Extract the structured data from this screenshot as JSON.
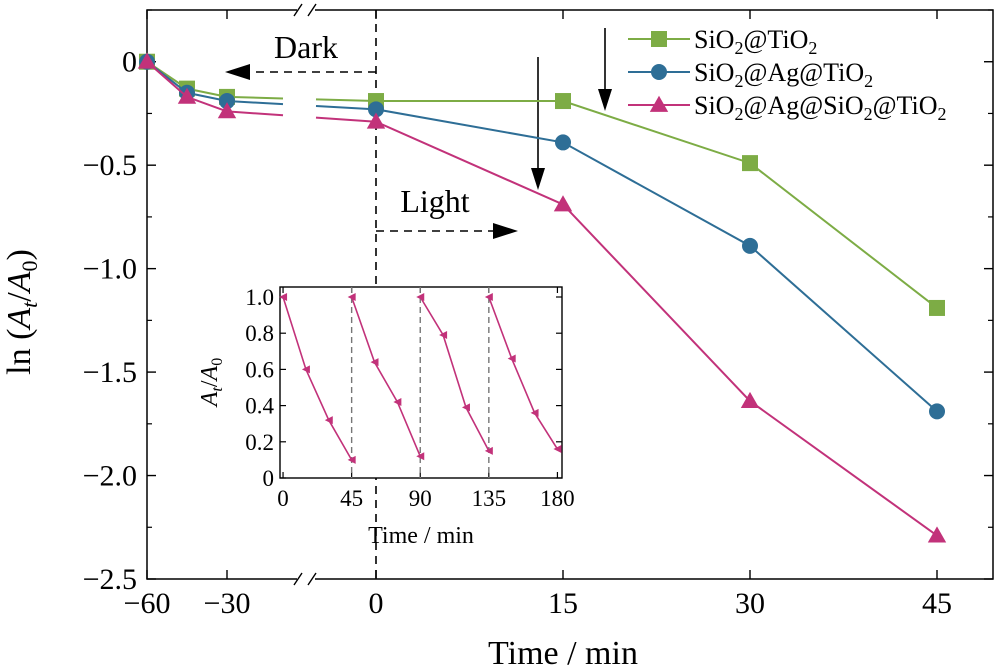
{
  "chart_data": [
    {
      "type": "line",
      "title": "",
      "xlabel": "Time / min",
      "ylabel_prefix": "ln (",
      "ylabel_num": "A",
      "ylabel_num_sub": "t",
      "ylabel_slash": "/",
      "ylabel_den": "A",
      "ylabel_den_sub": "0",
      "ylabel_suffix": ")",
      "x_ticks": [
        -60,
        -30,
        0,
        15,
        30,
        45
      ],
      "x_tick_labels": [
        "−60",
        "−30",
        "0",
        "15",
        "30",
        "45"
      ],
      "y_ticks": [
        0,
        -0.5,
        -1.0,
        -1.5,
        -2.0,
        -2.5
      ],
      "y_tick_labels": [
        "0",
        "−0.5",
        "−1.0",
        "−1.5",
        "−2.0",
        "−2.5"
      ],
      "ylim": [
        -2.5,
        0.25
      ],
      "axis_break_x": "between -30 and 0",
      "grid": false,
      "legend_position": "top-right",
      "annotations": {
        "dark": "Dark",
        "light": "Light"
      },
      "series": [
        {
          "name": "SiO₂@TiO₂",
          "legend_parts": [
            [
              "SiO",
              ""
            ],
            [
              "2",
              "sub"
            ],
            [
              "@TiO",
              ""
            ],
            [
              "2",
              "sub"
            ]
          ],
          "color": "#7dac45",
          "marker": "square",
          "x": [
            -60,
            -45,
            -30,
            0,
            15,
            30,
            45
          ],
          "y": [
            0,
            -0.13,
            -0.17,
            -0.19,
            -0.19,
            -0.49,
            -1.19
          ]
        },
        {
          "name": "SiO₂@Ag@TiO₂",
          "legend_parts": [
            [
              "SiO",
              ""
            ],
            [
              "2",
              "sub"
            ],
            [
              "@Ag@TiO",
              ""
            ],
            [
              "2",
              "sub"
            ]
          ],
          "color": "#2e6e96",
          "marker": "circle",
          "x": [
            -60,
            -45,
            -30,
            0,
            15,
            30,
            45
          ],
          "y": [
            0,
            -0.15,
            -0.19,
            -0.23,
            -0.39,
            -0.89,
            -1.69
          ]
        },
        {
          "name": "SiO₂@Ag@SiO₂@TiO₂",
          "legend_parts": [
            [
              "SiO",
              ""
            ],
            [
              "2",
              "sub"
            ],
            [
              "@Ag@SiO",
              ""
            ],
            [
              "2",
              "sub"
            ],
            [
              "@TiO",
              ""
            ],
            [
              "2",
              "sub"
            ]
          ],
          "color": "#c2327a",
          "marker": "triangle",
          "x": [
            -60,
            -45,
            -30,
            0,
            15,
            30,
            45
          ],
          "y": [
            0,
            -0.17,
            -0.24,
            -0.29,
            -0.69,
            -1.64,
            -2.29
          ]
        }
      ]
    },
    {
      "type": "line",
      "title": "",
      "xlabel": "Time / min",
      "ylabel_num": "A",
      "ylabel_num_sub": "t",
      "ylabel_slash": "/",
      "ylabel_den": "A",
      "ylabel_den_sub": "0",
      "xlim": [
        -2,
        183
      ],
      "ylim": [
        0,
        1.0
      ],
      "x_ticks": [
        0,
        45,
        90,
        135,
        180
      ],
      "x_tick_labels": [
        "0",
        "45",
        "90",
        "135",
        "180"
      ],
      "y_ticks": [
        0,
        0.2,
        0.4,
        0.6,
        0.8,
        1.0
      ],
      "y_tick_labels": [
        "0",
        "0.2",
        "0.4",
        "0.6",
        "0.8",
        "1.0"
      ],
      "cycle_dividers": [
        45,
        90,
        135
      ],
      "marker": "triangle",
      "color": "#c2327a",
      "cycles": [
        {
          "x": [
            0,
            15,
            30,
            45
          ],
          "y": [
            1.0,
            0.6,
            0.32,
            0.1
          ]
        },
        {
          "x": [
            45,
            60,
            75,
            90
          ],
          "y": [
            1.0,
            0.64,
            0.42,
            0.12
          ]
        },
        {
          "x": [
            90,
            105,
            120,
            135
          ],
          "y": [
            1.0,
            0.79,
            0.39,
            0.15
          ]
        },
        {
          "x": [
            135,
            150,
            165,
            180
          ],
          "y": [
            1.0,
            0.66,
            0.36,
            0.16
          ]
        }
      ]
    }
  ]
}
